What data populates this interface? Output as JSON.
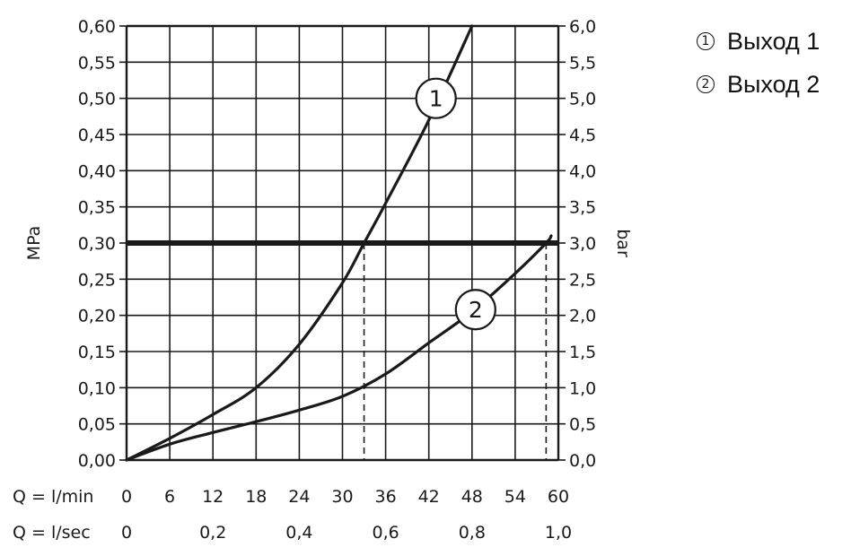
{
  "chart_data": {
    "type": "line",
    "left_axis": {
      "label": "MPa",
      "ticks": [
        "0,00",
        "0,05",
        "0,10",
        "0,15",
        "0,20",
        "0,25",
        "0,30",
        "0,35",
        "0,40",
        "0,45",
        "0,50",
        "0,55",
        "0,60"
      ],
      "ylim": [
        0,
        0.6
      ]
    },
    "right_axis": {
      "label": "bar",
      "ticks": [
        "0,0",
        "0,5",
        "1,0",
        "1,5",
        "2,0",
        "2,5",
        "3,0",
        "3,5",
        "4,0",
        "4,5",
        "5,0",
        "5,5",
        "6,0"
      ],
      "ylim": [
        0,
        6
      ]
    },
    "x_axis": {
      "xlim": [
        0,
        60
      ],
      "lmin_label": "Q = l/min",
      "lmin_ticks": [
        {
          "value": 0,
          "label": "0"
        },
        {
          "value": 6,
          "label": "6"
        },
        {
          "value": 12,
          "label": "12"
        },
        {
          "value": 18,
          "label": "18"
        },
        {
          "value": 24,
          "label": "24"
        },
        {
          "value": 30,
          "label": "30"
        },
        {
          "value": 36,
          "label": "36"
        },
        {
          "value": 42,
          "label": "42"
        },
        {
          "value": 48,
          "label": "48"
        },
        {
          "value": 54,
          "label": "54"
        },
        {
          "value": 60,
          "label": "60"
        }
      ],
      "lsec_label": "Q = l/sec",
      "lsec_ticks": [
        {
          "value": 0,
          "label": "0"
        },
        {
          "value": 12,
          "label": "0,2"
        },
        {
          "value": 24,
          "label": "0,4"
        },
        {
          "value": 36,
          "label": "0,6"
        },
        {
          "value": 48,
          "label": "0,8"
        },
        {
          "value": 60,
          "label": "1,0"
        }
      ]
    },
    "reference_line": {
      "y": 0.3
    },
    "drop_lines": [
      {
        "x": 33,
        "y": 0.3
      },
      {
        "x": 58.3,
        "y": 0.3
      }
    ],
    "series": [
      {
        "label": "1",
        "x": [
          0,
          6,
          12,
          18,
          24,
          30,
          33,
          36,
          42,
          48
        ],
        "y": [
          0,
          0.03,
          0.063,
          0.1,
          0.16,
          0.245,
          0.3,
          0.355,
          0.47,
          0.6
        ],
        "label_at": {
          "x": 43,
          "y": 0.5
        }
      },
      {
        "label": "2",
        "x": [
          0,
          6,
          12,
          18,
          24,
          30,
          36,
          42,
          48,
          54,
          58.3,
          59
        ],
        "y": [
          0,
          0.022,
          0.038,
          0.053,
          0.069,
          0.088,
          0.119,
          0.162,
          0.205,
          0.258,
          0.3,
          0.31
        ],
        "label_at": {
          "x": 48.5,
          "y": 0.208
        }
      }
    ]
  },
  "legend": [
    {
      "marker": "①",
      "label": "Выход 1"
    },
    {
      "marker": "②",
      "label": "Выход 2"
    }
  ]
}
